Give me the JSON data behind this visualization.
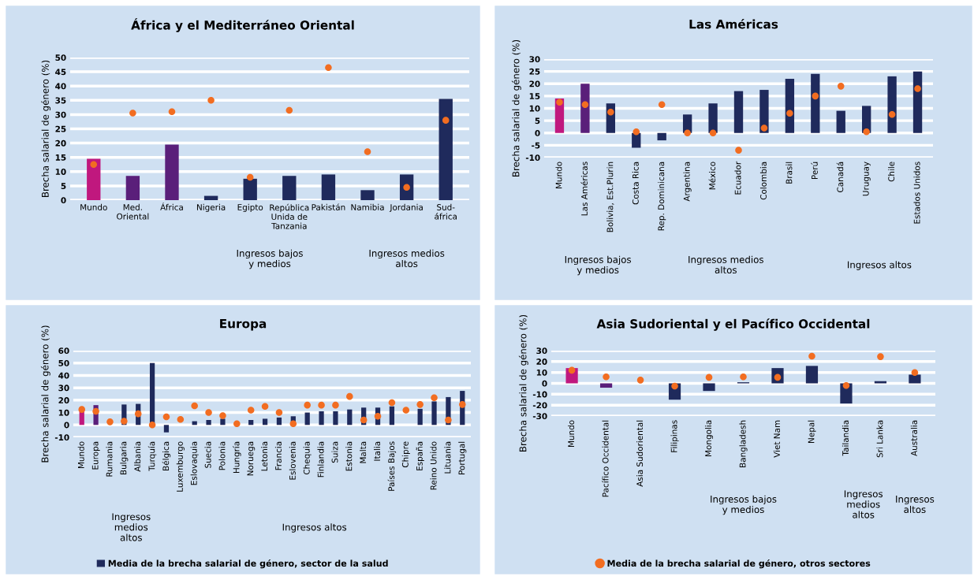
{
  "chart_data": [
    {
      "type": "bar",
      "title": "África y el Mediterráneo Oriental",
      "ylabel": "Brecha salarial de género (%)",
      "categories": [
        "Mundo",
        "Med.\nOriental",
        "África",
        "Nigeria",
        "Egipto",
        "República\nUnida de\nTanzania",
        "Pakistán",
        "Namibia",
        "Jordania",
        "Sud-\náfrica"
      ],
      "series": [
        {
          "colors": [
            "#c0187e",
            "#5a1f7a",
            "#5a1f7a",
            "#1f2a5c",
            "#1f2a5c",
            "#1f2a5c",
            "#1f2a5c",
            "#1f2a5c",
            "#1f2a5c",
            "#1f2a5c"
          ],
          "values": [
            14.5,
            8.5,
            19.5,
            1.5,
            7.5,
            8.5,
            9,
            3.5,
            9,
            35.5
          ]
        },
        {
          "type": "scatter",
          "color": "#f26d21",
          "values": [
            12.5,
            30.5,
            31,
            35,
            8,
            31.5,
            46.5,
            17,
            4.5,
            28
          ]
        }
      ],
      "ylim": [
        0,
        50
      ],
      "yticks": [
        0,
        5,
        10,
        15,
        20,
        25,
        30,
        35,
        40,
        45,
        50
      ],
      "grid": "y",
      "marker": "circle",
      "annotations": [
        "Ingresos bajos\ny medios",
        "Ingresos medios\naltos"
      ]
    },
    {
      "type": "bar",
      "title": "Las Américas",
      "ylabel": "Brecha salarial de género (%)",
      "categories": [
        "Mundo",
        "Las Américas",
        "Bolivia, Est.Plurin",
        "Costa Rica",
        "Rep. Dominicana",
        "Argentina",
        "México",
        "Ecuador",
        "Colombia",
        "Brasil",
        "Perú",
        "Canadá",
        "Uruguay",
        "Chile",
        "Estados Unidos"
      ],
      "series": [
        {
          "colors": [
            "#c0187e",
            "#5a1f7a",
            "#1f2a5c",
            "#1f2a5c",
            "#1f2a5c",
            "#1f2a5c",
            "#1f2a5c",
            "#1f2a5c",
            "#1f2a5c",
            "#1f2a5c",
            "#1f2a5c",
            "#1f2a5c",
            "#1f2a5c",
            "#1f2a5c",
            "#1f2a5c"
          ],
          "values": [
            14,
            20,
            12,
            -6,
            -3,
            7.5,
            12,
            17,
            17.5,
            22,
            24,
            9,
            11,
            23,
            25
          ]
        },
        {
          "type": "scatter",
          "color": "#f26d21",
          "values": [
            12.5,
            11.5,
            8.5,
            0.5,
            11.5,
            0,
            0,
            -7,
            2,
            8,
            15,
            19,
            0.5,
            7.5,
            18
          ]
        }
      ],
      "ylim": [
        -10,
        30
      ],
      "yticks": [
        -10,
        -5,
        0,
        5,
        10,
        15,
        20,
        25,
        30
      ],
      "grid": "y",
      "marker": "circle",
      "annotations": [
        "Ingresos bajos\ny medios",
        "Ingresos medios\naltos",
        "Ingresos altos"
      ]
    },
    {
      "type": "bar",
      "title": "Europa",
      "ylabel": "Brecha salarial de género (%)",
      "categories": [
        "Mundo",
        "Europa",
        "Rumania",
        "Bulgaria",
        "Albania",
        "Turquía",
        "Bélgica",
        "Luxemburgo",
        "Eslovaquia",
        "Suecia",
        "Polonia",
        "Hungría",
        "Noruega",
        "Letonia",
        "Francia",
        "Eslovenia",
        "Chequia",
        "Finlandia",
        "Suiza",
        "Estonia",
        "Malta",
        "Italia",
        "Países Bajos",
        "Chipre",
        "España",
        "Reino Unido",
        "Lituania",
        "Portugal"
      ],
      "series": [
        {
          "name": "Media de la brecha salarial de género, sector de la salud",
          "colors": [
            "#c0187e",
            "#5a1f7a",
            "#1f2a5c",
            "#1f2a5c",
            "#1f2a5c",
            "#1f2a5c",
            "#1f2a5c",
            "#1f2a5c",
            "#1f2a5c",
            "#1f2a5c",
            "#1f2a5c",
            "#1f2a5c",
            "#1f2a5c",
            "#1f2a5c",
            "#1f2a5c",
            "#1f2a5c",
            "#1f2a5c",
            "#1f2a5c",
            "#1f2a5c",
            "#1f2a5c",
            "#1f2a5c",
            "#1f2a5c",
            "#1f2a5c",
            "#1f2a5c",
            "#1f2a5c",
            "#1f2a5c",
            "#1f2a5c",
            "#1f2a5c"
          ],
          "values": [
            14,
            16,
            null,
            16.5,
            17,
            50,
            -6,
            null,
            3,
            4,
            5,
            null,
            4,
            5,
            6,
            7,
            10,
            11,
            11,
            12.5,
            14,
            14,
            15,
            null,
            13,
            19,
            22.5,
            27.5
          ]
        },
        {
          "type": "scatter",
          "color": "#f26d21",
          "values": [
            12.5,
            11,
            2.5,
            3,
            9,
            0,
            6.5,
            4.5,
            15.5,
            10,
            7.5,
            1,
            12,
            15,
            10,
            1,
            16,
            16,
            16,
            23,
            4,
            7,
            18,
            12,
            16.5,
            22,
            4,
            16.5
          ]
        }
      ],
      "ylim": [
        -10,
        60
      ],
      "yticks": [
        -10,
        0,
        10,
        20,
        30,
        40,
        50,
        60
      ],
      "grid": "y",
      "marker": "circle",
      "legend": "bottom",
      "annotations": [
        "Ingresos\nmedios\naltos",
        "Ingresos altos"
      ]
    },
    {
      "type": "bar",
      "title": "Asia Sudoriental y el Pacífico Occidental",
      "ylabel": "Brecha salarial de género (%)",
      "categories": [
        "Mundo",
        "Pacífico Occidental",
        "Asia Sudoriental",
        "Filipinas",
        "Mongolia",
        "Bangladesh",
        "Viet Nam",
        "Nepal",
        "Tailandia",
        "Sri Lanka",
        "Australia"
      ],
      "series": [
        {
          "colors": [
            "#c0187e",
            "#5a1f7a",
            "#5a1f7a",
            "#1f2a5c",
            "#1f2a5c",
            "#1f2a5c",
            "#1f2a5c",
            "#1f2a5c",
            "#1f2a5c",
            "#1f2a5c",
            "#1f2a5c"
          ],
          "values": [
            14,
            -4,
            null,
            -15,
            -7,
            1,
            14,
            16,
            -18.5,
            2,
            8
          ]
        },
        {
          "type": "scatter",
          "name": "Media de la brecha salarial de género, otros sectores",
          "color": "#f26d21",
          "values": [
            12,
            6,
            3,
            -2.5,
            5.5,
            6,
            5.5,
            25,
            -2,
            24.5,
            10
          ]
        }
      ],
      "ylim": [
        -30,
        30
      ],
      "yticks": [
        -30,
        -20,
        -10,
        0,
        10,
        20,
        30
      ],
      "grid": "y",
      "marker": "circle",
      "legend": "bottom",
      "annotations": [
        "Ingresos bajos\ny medios",
        "Ingresos\nmedios\naltos",
        "Ingresos\naltos"
      ]
    }
  ]
}
